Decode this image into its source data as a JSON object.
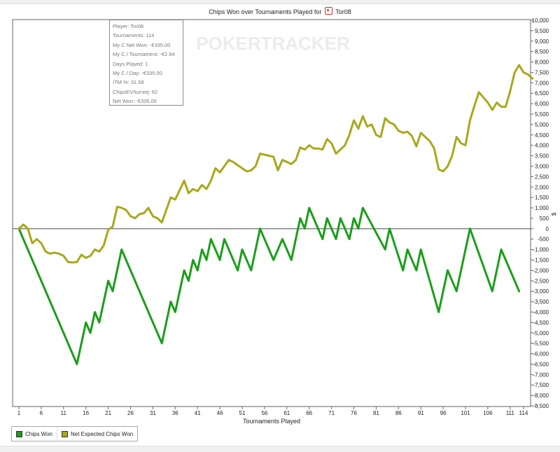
{
  "chart_data": {
    "type": "line",
    "title_prefix": "Chips Won over Tournaments Played for",
    "title_player": "Tor08",
    "xlabel": "Tournaments Played",
    "ylabel": "$",
    "watermark": "POKERTRACKER",
    "xlim": [
      1,
      114
    ],
    "ylim": [
      -8500,
      10000
    ],
    "x_ticks": [
      1,
      6,
      11,
      16,
      21,
      26,
      31,
      36,
      41,
      46,
      51,
      56,
      61,
      66,
      71,
      76,
      81,
      86,
      91,
      96,
      101,
      106,
      111,
      114
    ],
    "y_ticks": [
      10000,
      9500,
      9000,
      8500,
      8000,
      7500,
      7000,
      6500,
      6000,
      5500,
      5000,
      4500,
      4000,
      3500,
      3000,
      2500,
      2000,
      1500,
      1000,
      500,
      0,
      -500,
      -1000,
      -1500,
      -2000,
      -2500,
      -3000,
      -3500,
      -4000,
      -4500,
      -5000,
      -5500,
      -6000,
      -6500,
      -7000,
      -7500,
      -8000,
      -8500
    ],
    "series": [
      {
        "name": "Chips Won",
        "color": "#1a9e1a",
        "points": [
          [
            1,
            0
          ],
          [
            14,
            -6500
          ],
          [
            16,
            -4500
          ],
          [
            17,
            -5000
          ],
          [
            18,
            -4000
          ],
          [
            19,
            -4500
          ],
          [
            21,
            -2500
          ],
          [
            22,
            -3000
          ],
          [
            24,
            -1000
          ],
          [
            33,
            -5500
          ],
          [
            35,
            -3500
          ],
          [
            36,
            -4000
          ],
          [
            38,
            -2000
          ],
          [
            39,
            -2500
          ],
          [
            40,
            -1500
          ],
          [
            41,
            -2000
          ],
          [
            42,
            -1000
          ],
          [
            43,
            -1500
          ],
          [
            44,
            -500
          ],
          [
            46,
            -1500
          ],
          [
            47,
            -500
          ],
          [
            50,
            -2000
          ],
          [
            51,
            -1000
          ],
          [
            53,
            -2000
          ],
          [
            55,
            0
          ],
          [
            58,
            -1500
          ],
          [
            60,
            -500
          ],
          [
            62,
            -1500
          ],
          [
            64,
            500
          ],
          [
            65,
            0
          ],
          [
            66,
            1000
          ],
          [
            69,
            -500
          ],
          [
            70,
            500
          ],
          [
            72,
            -500
          ],
          [
            73,
            500
          ],
          [
            75,
            -500
          ],
          [
            76,
            500
          ],
          [
            77,
            0
          ],
          [
            78,
            1000
          ],
          [
            83,
            -1000
          ],
          [
            84,
            0
          ],
          [
            87,
            -2000
          ],
          [
            88,
            -1000
          ],
          [
            90,
            -2000
          ],
          [
            91,
            -1000
          ],
          [
            95,
            -4000
          ],
          [
            97,
            -2000
          ],
          [
            99,
            -3000
          ],
          [
            102,
            0
          ],
          [
            107,
            -3000
          ],
          [
            109,
            -1000
          ],
          [
            113,
            -3000
          ]
        ]
      },
      {
        "name": "Net Expected Chips Won",
        "color": "#a8a81c",
        "points": [
          [
            1,
            0
          ],
          [
            2,
            200
          ],
          [
            3,
            0
          ],
          [
            4,
            -700
          ],
          [
            5,
            -500
          ],
          [
            6,
            -700
          ],
          [
            7,
            -1100
          ],
          [
            8,
            -1200
          ],
          [
            9,
            -1150
          ],
          [
            10,
            -1200
          ],
          [
            11,
            -1300
          ],
          [
            12,
            -1600
          ],
          [
            13,
            -1620
          ],
          [
            14,
            -1600
          ],
          [
            15,
            -1250
          ],
          [
            16,
            -1400
          ],
          [
            17,
            -1300
          ],
          [
            18,
            -1000
          ],
          [
            19,
            -1100
          ],
          [
            20,
            -800
          ],
          [
            21,
            -50
          ],
          [
            22,
            100
          ],
          [
            23,
            1050
          ],
          [
            24,
            1000
          ],
          [
            25,
            900
          ],
          [
            26,
            600
          ],
          [
            27,
            500
          ],
          [
            28,
            700
          ],
          [
            29,
            750
          ],
          [
            30,
            1000
          ],
          [
            31,
            600
          ],
          [
            32,
            500
          ],
          [
            33,
            300
          ],
          [
            35,
            1500
          ],
          [
            36,
            1400
          ],
          [
            38,
            2300
          ],
          [
            39,
            1700
          ],
          [
            40,
            1900
          ],
          [
            41,
            1800
          ],
          [
            42,
            2100
          ],
          [
            43,
            1900
          ],
          [
            44,
            2300
          ],
          [
            45,
            2900
          ],
          [
            46,
            2700
          ],
          [
            48,
            3300
          ],
          [
            49,
            3200
          ],
          [
            51,
            2900
          ],
          [
            52,
            2750
          ],
          [
            53,
            2800
          ],
          [
            54,
            3000
          ],
          [
            55,
            3600
          ],
          [
            58,
            3450
          ],
          [
            59,
            2800
          ],
          [
            60,
            3300
          ],
          [
            61,
            3200
          ],
          [
            62,
            3100
          ],
          [
            63,
            3300
          ],
          [
            64,
            3900
          ],
          [
            65,
            3800
          ],
          [
            66,
            4000
          ],
          [
            67,
            3850
          ],
          [
            68,
            3850
          ],
          [
            69,
            3800
          ],
          [
            70,
            4300
          ],
          [
            71,
            4100
          ],
          [
            72,
            3600
          ],
          [
            73,
            3800
          ],
          [
            74,
            4000
          ],
          [
            75,
            4500
          ],
          [
            76,
            5200
          ],
          [
            77,
            4800
          ],
          [
            78,
            5400
          ],
          [
            79,
            4900
          ],
          [
            80,
            5000
          ],
          [
            81,
            4500
          ],
          [
            82,
            4400
          ],
          [
            83,
            5300
          ],
          [
            84,
            5100
          ],
          [
            85,
            5000
          ],
          [
            86,
            4700
          ],
          [
            87,
            4600
          ],
          [
            88,
            4650
          ],
          [
            89,
            4450
          ],
          [
            90,
            3950
          ],
          [
            91,
            4600
          ],
          [
            92,
            4400
          ],
          [
            93,
            4200
          ],
          [
            94,
            3850
          ],
          [
            95,
            2850
          ],
          [
            96,
            2750
          ],
          [
            97,
            3000
          ],
          [
            98,
            3500
          ],
          [
            99,
            4400
          ],
          [
            100,
            4100
          ],
          [
            101,
            4000
          ],
          [
            102,
            5200
          ],
          [
            103,
            5900
          ],
          [
            104,
            6550
          ],
          [
            105,
            6300
          ],
          [
            106,
            6050
          ],
          [
            107,
            5700
          ],
          [
            108,
            6050
          ],
          [
            109,
            5850
          ],
          [
            110,
            5850
          ],
          [
            111,
            6600
          ],
          [
            112,
            7500
          ],
          [
            113,
            7850
          ],
          [
            114,
            7500
          ],
          [
            115,
            7400
          ],
          [
            116,
            7200
          ]
        ]
      }
    ],
    "tooltip": [
      "Player: Tor08",
      "Tournaments: 114",
      "My C Net Won: -€335.00",
      "My C / Tournament: -€2.94",
      "Days Played: 1",
      "My C / Day: -€335.00",
      "ITM %: 31.58",
      "ChipsEV/turniej: 62",
      "Net Won: -€335.00"
    ],
    "legend": [
      {
        "label": "Chips Won",
        "color": "#1a9e1a"
      },
      {
        "label": "Net Expected Chips Won",
        "color": "#a8a81c"
      }
    ],
    "grid": false,
    "zero_line": true
  }
}
